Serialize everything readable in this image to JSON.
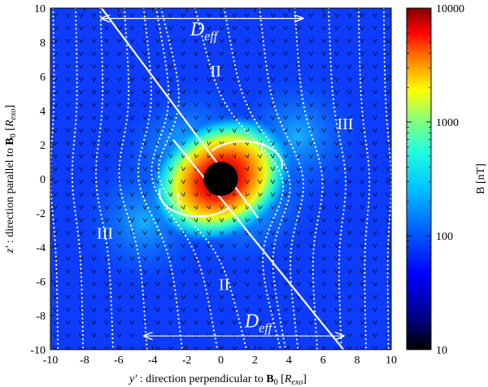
{
  "chart_data": {
    "type": "heatmap",
    "title": "",
    "xlabel": "y′ : direction perpendicular to B₀ [R_exo]",
    "xlabel_parts": {
      "var": "y′",
      "desc": " : direction perpendicular to ",
      "bold": "B",
      "sub": "0",
      "unit_pre": " [",
      "unit": "R",
      "unit_sub": "exo",
      "unit_post": "]"
    },
    "ylabel": "z′ : direction parallel to B₀ [R_exo]",
    "ylabel_parts": {
      "var": "z′",
      "desc": " : direction parallel to ",
      "bold": "B",
      "sub": "0",
      "unit_pre": " [",
      "unit": "R",
      "unit_sub": "exo",
      "unit_post": "]"
    },
    "xlim": [
      -10,
      10
    ],
    "ylim": [
      -10,
      10
    ],
    "xticks": [
      -10,
      -8,
      -6,
      -4,
      -2,
      0,
      2,
      4,
      6,
      8,
      10
    ],
    "yticks": [
      -10,
      -8,
      -6,
      -4,
      -2,
      0,
      2,
      4,
      6,
      8,
      10
    ],
    "colorbar": {
      "label": "B [nT]",
      "scale": "log",
      "range": [
        10,
        10000
      ],
      "ticks": [
        10,
        100,
        1000,
        10000
      ],
      "tick_labels": [
        "10",
        "100",
        "1000",
        "10000"
      ],
      "colormap": "jet"
    },
    "field_center": [
      0,
      0
    ],
    "planet_radius": 1,
    "peak_field_nT": 10000,
    "background_field_nT": 100,
    "regions": [
      {
        "label": "II",
        "x": -0.3,
        "y": 6.0
      },
      {
        "label": "III",
        "x": 7.3,
        "y": 2.9
      },
      {
        "label": "I",
        "x": 2.4,
        "y": 1.5
      },
      {
        "label": "I",
        "x": -2.5,
        "y": -1.5
      },
      {
        "label": "III",
        "x": -6.8,
        "y": -3.5
      },
      {
        "label": "II",
        "x": 0.2,
        "y": -6.5
      }
    ],
    "annotations": [
      {
        "text": "D_eff",
        "main": "D",
        "sub": "eff",
        "x": -1.0,
        "y": 8.4,
        "arrow_from": -7.0,
        "arrow_to": 4.8,
        "arrow_y": 9.4
      },
      {
        "text": "D_eff",
        "main": "D",
        "sub": "eff",
        "x": 2.2,
        "y": -8.7,
        "arrow_from": -4.5,
        "arrow_to": 7.2,
        "arrow_y": -9.2
      }
    ]
  }
}
